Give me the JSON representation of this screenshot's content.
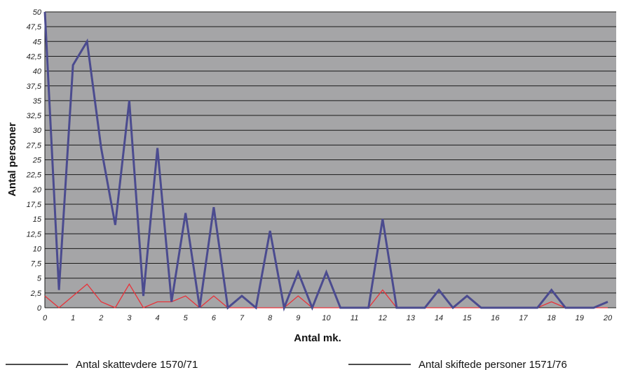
{
  "chart_data": {
    "type": "line",
    "xlabel": "Antal mk.",
    "ylabel": "Antal personer",
    "xlim": [
      0,
      20.3
    ],
    "ylim": [
      0,
      50
    ],
    "x_ticks": [
      "0",
      "1",
      "2",
      "3",
      "4",
      "5",
      "6",
      "7",
      "8",
      "9",
      "10",
      "11",
      "12",
      "13",
      "14",
      "15",
      "16",
      "17",
      "18",
      "19",
      "20"
    ],
    "y_ticks": [
      "0",
      "2,5",
      "5",
      "7,5",
      "10",
      "12,5",
      "15",
      "17,5",
      "20",
      "22,5",
      "25",
      "27,5",
      "30",
      "32,5",
      "35",
      "37,5",
      "40",
      "42,5",
      "45",
      "47,5",
      "50"
    ],
    "grid": true,
    "legend_position": "bottom",
    "x": [
      0,
      0.5,
      1,
      1.5,
      2,
      2.5,
      3,
      3.5,
      4,
      4.5,
      5,
      5.5,
      6,
      6.5,
      7,
      7.5,
      8,
      8.5,
      9,
      9.5,
      10,
      10.5,
      11,
      11.5,
      12,
      12.5,
      13,
      13.5,
      14,
      14.5,
      15,
      15.5,
      16,
      16.5,
      17,
      17.5,
      18,
      18.5,
      19,
      19.5,
      20
    ],
    "series": [
      {
        "name": "Antal skattevdere 1570/71",
        "color": "#e8333a",
        "values": [
          2,
          0,
          2,
          4,
          1,
          0,
          4,
          0,
          1,
          1,
          2,
          0,
          2,
          0,
          0,
          0,
          0,
          0,
          2,
          0,
          0,
          0,
          0,
          0,
          3,
          0,
          0,
          0,
          0,
          0,
          0,
          0,
          0,
          0,
          0,
          0,
          1,
          0,
          0,
          0,
          0
        ]
      },
      {
        "name": "Antal skiftede personer 1571/76",
        "color": "#4b4b8f",
        "values": [
          50,
          3,
          41,
          45,
          27,
          14,
          35,
          2,
          27,
          1,
          16,
          0,
          17,
          0,
          2,
          0,
          13,
          0,
          6,
          0,
          6,
          0,
          0,
          0,
          15,
          0,
          0,
          0,
          3,
          0,
          2,
          0,
          0,
          0,
          0,
          0,
          3,
          0,
          0,
          0,
          1
        ]
      }
    ]
  }
}
